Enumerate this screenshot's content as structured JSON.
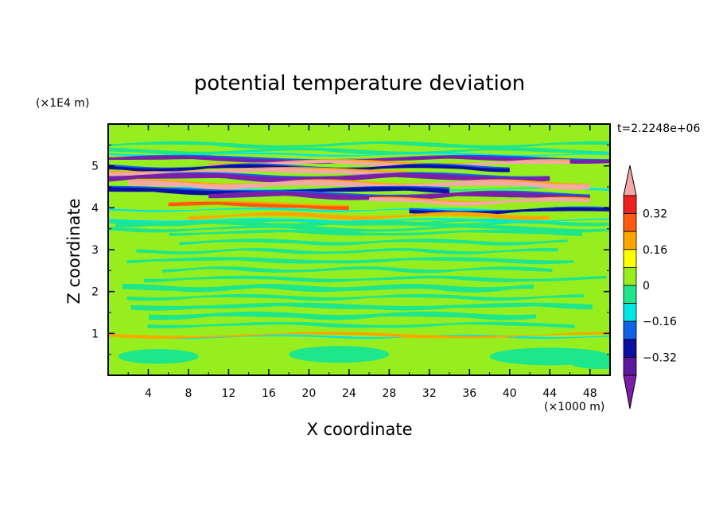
{
  "chart_data": {
    "type": "heatmap",
    "title": "potential temperature deviation",
    "xlabel": "X coordinate",
    "ylabel": "Z coordinate",
    "x_unit_label": "(×1000 m)",
    "y_unit_label": "(×1E4 m)",
    "time_label": "t=2.2248e+06",
    "xlim": [
      0,
      50
    ],
    "ylim": [
      0,
      6
    ],
    "x_ticks": [
      "4",
      "8",
      "12",
      "16",
      "20",
      "24",
      "28",
      "32",
      "36",
      "40",
      "44",
      "48"
    ],
    "y_ticks": [
      "1",
      "2",
      "3",
      "4",
      "5"
    ],
    "colorbar": {
      "levels": [
        -0.4,
        -0.32,
        -0.24,
        -0.16,
        -0.08,
        0,
        0.08,
        0.16,
        0.24,
        0.32,
        0.4
      ],
      "tick_labels": [
        "0.32",
        "0.16",
        "0",
        "−0.16",
        "−0.32"
      ],
      "tick_values": [
        0.32,
        0.16,
        0,
        -0.16,
        -0.32
      ],
      "colors": [
        "#7a1fa8",
        "#5a1a9e",
        "#0c10a0",
        "#1060e8",
        "#00e5e5",
        "#1ee68a",
        "#96ee1e",
        "#ffff00",
        "#ffa500",
        "#ff5a10",
        "#ee2020",
        "#f5a8a8"
      ]
    },
    "bands": [
      {
        "z": 5.15,
        "thickness": 0.1,
        "value": -0.42,
        "x_extent": [
          0,
          50
        ]
      },
      {
        "z": 5.05,
        "thickness": 0.1,
        "value": 0.42,
        "x_extent": [
          10,
          46
        ]
      },
      {
        "z": 4.95,
        "thickness": 0.1,
        "value": -0.28,
        "x_extent": [
          0,
          40
        ]
      },
      {
        "z": 4.85,
        "thickness": 0.12,
        "value": 0.42,
        "x_extent": [
          0,
          30
        ]
      },
      {
        "z": 4.72,
        "thickness": 0.14,
        "value": -0.42,
        "x_extent": [
          0,
          44
        ]
      },
      {
        "z": 4.55,
        "thickness": 0.14,
        "value": 0.42,
        "x_extent": [
          2,
          48
        ]
      },
      {
        "z": 4.4,
        "thickness": 0.12,
        "value": -0.3,
        "x_extent": [
          0,
          34
        ]
      },
      {
        "z": 4.28,
        "thickness": 0.14,
        "value": -0.42,
        "x_extent": [
          10,
          48
        ]
      },
      {
        "z": 4.15,
        "thickness": 0.1,
        "value": 0.42,
        "x_extent": [
          26,
          48
        ]
      },
      {
        "z": 4.05,
        "thickness": 0.1,
        "value": 0.3,
        "x_extent": [
          6,
          24
        ]
      },
      {
        "z": 3.92,
        "thickness": 0.1,
        "value": -0.3,
        "x_extent": [
          30,
          50
        ]
      },
      {
        "z": 3.8,
        "thickness": 0.08,
        "value": 0.2,
        "x_extent": [
          8,
          44
        ]
      },
      {
        "z": 0.95,
        "thickness": 0.05,
        "value": 0.2,
        "x_extent": [
          0,
          50
        ]
      }
    ]
  }
}
